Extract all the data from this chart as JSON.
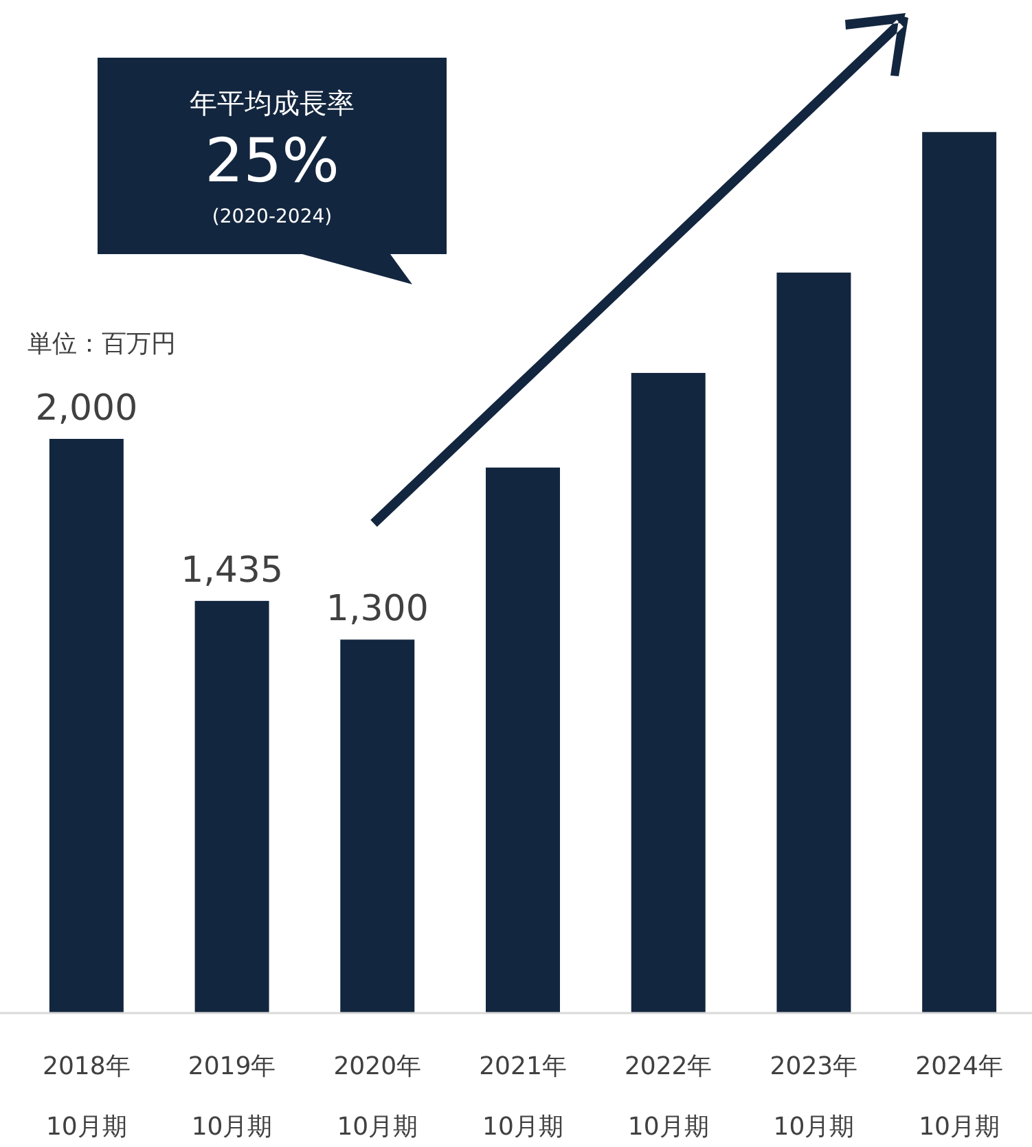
{
  "chart_data": {
    "type": "bar",
    "categories": [
      "2018年\n10月期",
      "2019年\n10月期",
      "2020年\n10月期",
      "2021年\n10月期",
      "2022年\n10月期",
      "2023年\n10月期",
      "2024年\n10月期"
    ],
    "values": [
      2000,
      1435,
      1300,
      1900,
      2230,
      2580,
      3070
    ],
    "value_labels": [
      "2,000",
      "1,435",
      "1,300",
      null,
      null,
      null,
      null
    ],
    "color": "#13263f",
    "annotations": [
      "年平均成長率",
      "25%",
      "(2020-2024)",
      "単位：百万円"
    ],
    "data_labels": false
  }
}
